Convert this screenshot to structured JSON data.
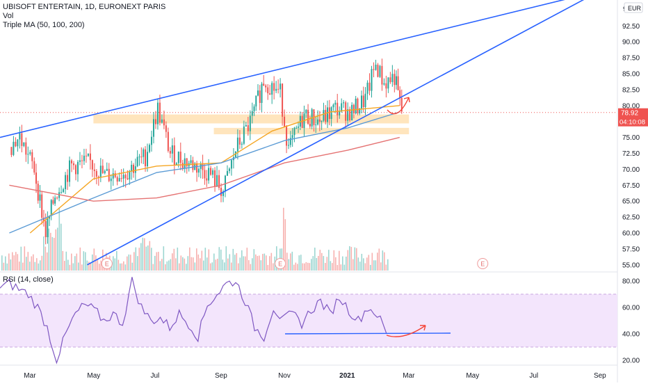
{
  "header": {
    "symbol": "UBISOFT ENTERTAIN, 1D, EURONEXT PARIS",
    "vol_label": "Vol",
    "ma_label": "Triple MA (50, 100, 200)",
    "rsi_label": "RSI (14, close)"
  },
  "currency_button": "EUR",
  "price_axis_top_partial": "9",
  "price_tag": {
    "last": "78.92",
    "countdown": "04:10:08"
  },
  "earnings_marker": "E",
  "colors": {
    "up": "#26a69a",
    "down": "#ef5350",
    "trendline": "#2962ff",
    "ma50": "#f5a623",
    "ma100": "#5b9bd5",
    "ma200": "#e57373",
    "rsi": "#7e57c2",
    "rsi_band": "#f3e5fc",
    "zone": "#ffe0b2",
    "arrow": "#f44336"
  },
  "chart_data": [
    {
      "type": "candlestick",
      "title": "UBISOFT ENTERTAIN, 1D, EURONEXT PARIS",
      "ylabel": "EUR",
      "y_ticks": [
        "92.50",
        "90.00",
        "87.50",
        "85.00",
        "82.50",
        "80.00",
        "77.50",
        "75.00",
        "72.50",
        "70.00",
        "67.50",
        "65.00",
        "62.50",
        "60.00",
        "57.50",
        "55.00"
      ],
      "x_ticks": [
        "Mar",
        "May",
        "Jul",
        "Sep",
        "Nov",
        "2021",
        "Mar",
        "May",
        "Jul",
        "Sep"
      ],
      "ylim": [
        54.5,
        95.0
      ],
      "last_price": 78.92,
      "series_approx_close": [
        {
          "x": "2020-02-10",
          "y": 73.5
        },
        {
          "x": "2020-02-20",
          "y": 75.0
        },
        {
          "x": "2020-03-05",
          "y": 70.0
        },
        {
          "x": "2020-03-16",
          "y": 60.0
        },
        {
          "x": "2020-03-25",
          "y": 66.0
        },
        {
          "x": "2020-04-10",
          "y": 70.5
        },
        {
          "x": "2020-04-28",
          "y": 71.0
        },
        {
          "x": "2020-05-12",
          "y": 69.0
        },
        {
          "x": "2020-06-01",
          "y": 69.5
        },
        {
          "x": "2020-06-20",
          "y": 72.0
        },
        {
          "x": "2020-07-02",
          "y": 79.5
        },
        {
          "x": "2020-07-14",
          "y": 72.5
        },
        {
          "x": "2020-08-01",
          "y": 71.0
        },
        {
          "x": "2020-08-20",
          "y": 69.5
        },
        {
          "x": "2020-09-03",
          "y": 66.5
        },
        {
          "x": "2020-09-15",
          "y": 73.0
        },
        {
          "x": "2020-10-01",
          "y": 78.0
        },
        {
          "x": "2020-10-12",
          "y": 84.0
        },
        {
          "x": "2020-10-28",
          "y": 82.0
        },
        {
          "x": "2020-11-05",
          "y": 73.0
        },
        {
          "x": "2020-11-20",
          "y": 78.5
        },
        {
          "x": "2020-12-05",
          "y": 77.5
        },
        {
          "x": "2020-12-20",
          "y": 79.5
        },
        {
          "x": "2021-01-05",
          "y": 79.0
        },
        {
          "x": "2021-01-18",
          "y": 81.0
        },
        {
          "x": "2021-01-28",
          "y": 86.5
        },
        {
          "x": "2021-02-05",
          "y": 83.5
        },
        {
          "x": "2021-02-15",
          "y": 84.5
        },
        {
          "x": "2021-02-22",
          "y": 78.92
        }
      ],
      "moving_averages": [
        {
          "name": "MA 50",
          "points": [
            {
              "x": "2020-03-01",
              "y": 60.0
            },
            {
              "x": "2020-05-01",
              "y": 68.5
            },
            {
              "x": "2020-07-01",
              "y": 70.5
            },
            {
              "x": "2020-09-01",
              "y": 71.0
            },
            {
              "x": "2020-10-20",
              "y": 76.0
            },
            {
              "x": "2020-12-15",
              "y": 79.0
            },
            {
              "x": "2021-02-20",
              "y": 80.0
            }
          ]
        },
        {
          "name": "MA 100",
          "points": [
            {
              "x": "2020-02-10",
              "y": 60.0
            },
            {
              "x": "2020-05-01",
              "y": 65.5
            },
            {
              "x": "2020-07-01",
              "y": 69.5
            },
            {
              "x": "2020-09-01",
              "y": 71.0
            },
            {
              "x": "2020-11-01",
              "y": 74.5
            },
            {
              "x": "2021-01-01",
              "y": 76.5
            },
            {
              "x": "2021-02-20",
              "y": 79.0
            }
          ]
        },
        {
          "name": "MA 200",
          "points": [
            {
              "x": "2020-02-10",
              "y": 67.5
            },
            {
              "x": "2020-05-01",
              "y": 65.0
            },
            {
              "x": "2020-07-01",
              "y": 65.5
            },
            {
              "x": "2020-09-01",
              "y": 67.5
            },
            {
              "x": "2020-11-01",
              "y": 71.0
            },
            {
              "x": "2021-01-01",
              "y": 73.0
            },
            {
              "x": "2021-02-20",
              "y": 75.0
            }
          ]
        }
      ],
      "trendlines": [
        {
          "name": "upper",
          "from": {
            "x": "2020-02-01",
            "y": 75.0
          },
          "to": {
            "x": "2021-09-01",
            "y": 98.0
          }
        },
        {
          "name": "lower",
          "from": {
            "x": "2020-04-25",
            "y": 55.0
          },
          "to": {
            "x": "2021-09-01",
            "y": 98.0
          }
        }
      ],
      "zones": [
        {
          "from_x": "2020-05-01",
          "to_x": "2021-03-01",
          "y_low": 77.2,
          "y_high": 78.6
        },
        {
          "from_x": "2020-08-25",
          "to_x": "2021-03-01",
          "y_low": 75.5,
          "y_high": 76.5
        }
      ],
      "earnings_dates": [
        "2020-05-14",
        "2020-10-28",
        "2021-05-11"
      ]
    },
    {
      "type": "line",
      "title": "RSI (14, close)",
      "y_ticks": [
        "80.00",
        "60.00",
        "40.00",
        "20.00"
      ],
      "ylim": [
        15,
        85
      ],
      "band": [
        30,
        70
      ],
      "values_approx": [
        75,
        78,
        74,
        70,
        60,
        45,
        20,
        40,
        55,
        62,
        58,
        50,
        55,
        48,
        80,
        60,
        50,
        52,
        45,
        55,
        48,
        38,
        62,
        70,
        78,
        80,
        65,
        45,
        38,
        60,
        50,
        55,
        48,
        58,
        65,
        55,
        68,
        58,
        50,
        60,
        55,
        40
      ],
      "support_line": 40
    }
  ]
}
